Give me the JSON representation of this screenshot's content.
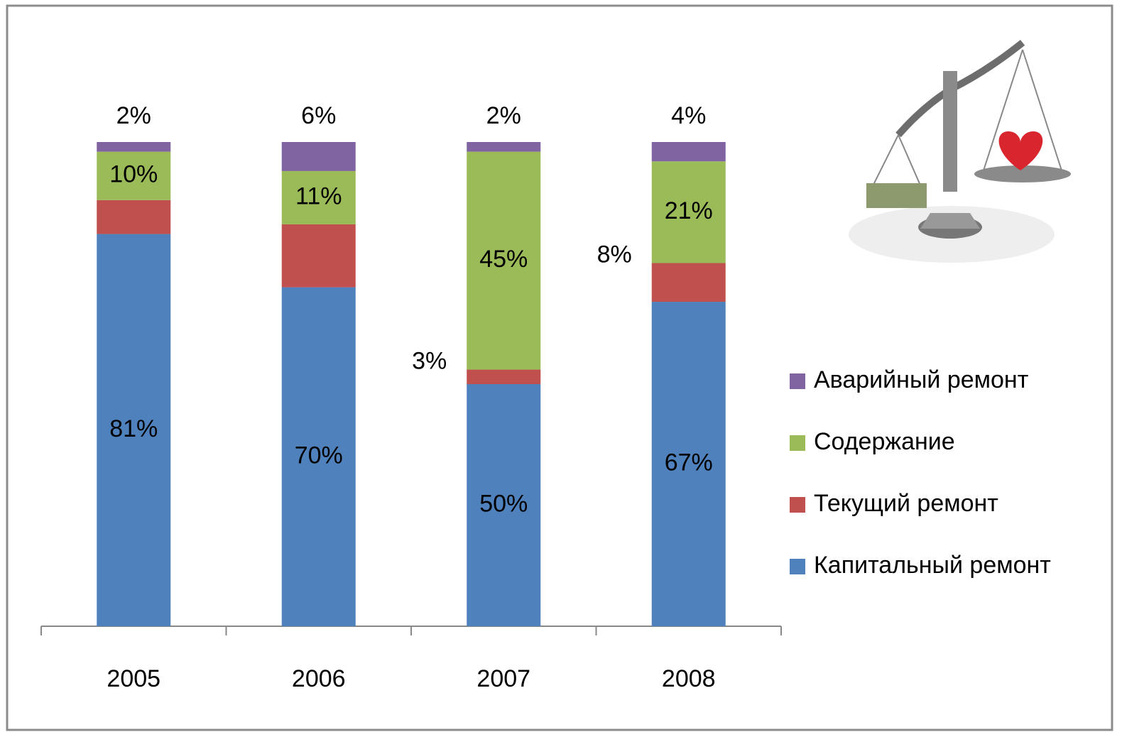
{
  "chart_data": {
    "type": "stacked_bar",
    "categories": [
      "2005",
      "2006",
      "2007",
      "2008"
    ],
    "series": [
      {
        "name": "Капитальный ремонт",
        "color": "#4f81bd",
        "values": [
          81,
          70,
          50,
          67
        ],
        "value_labels": [
          "81%",
          "70%",
          "50%",
          "67%"
        ]
      },
      {
        "name": "Текущий ремонт",
        "color": "#c0504d",
        "values": [
          7,
          13,
          3,
          8
        ],
        "value_labels": [
          null,
          null,
          "3%",
          "8%"
        ]
      },
      {
        "name": "Содержание",
        "color": "#9bbb59",
        "values": [
          10,
          11,
          45,
          21
        ],
        "value_labels": [
          "10%",
          "11%",
          "45%",
          "21%"
        ]
      },
      {
        "name": "Аварийный ремонт",
        "color": "#8064a2",
        "values": [
          2,
          6,
          2,
          4
        ],
        "value_labels": [
          "2%",
          "6%",
          "2%",
          "4%"
        ]
      }
    ]
  }
}
